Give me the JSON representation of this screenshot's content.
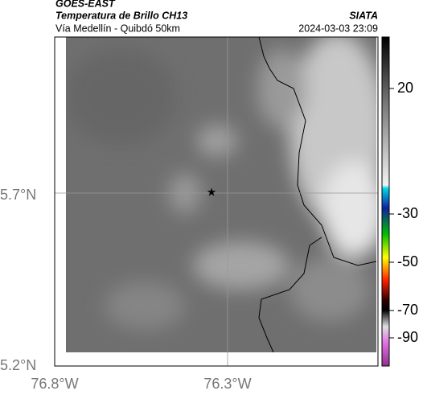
{
  "header": {
    "satellite": "GOES-EAST",
    "product": "Temperatura de Brillo CH13",
    "region": "Vía Medellín - Quibdó 50km",
    "source": "SIATA",
    "timestamp": "2024-03-03 23:09"
  },
  "map": {
    "lat_ticks": [
      "5.7°N",
      "5.2°N"
    ],
    "lon_ticks": [
      "76.8°W",
      "76.3°W"
    ]
  },
  "colorbar": {
    "ticks": [
      20,
      -30,
      -50,
      -70,
      -90
    ]
  }
}
